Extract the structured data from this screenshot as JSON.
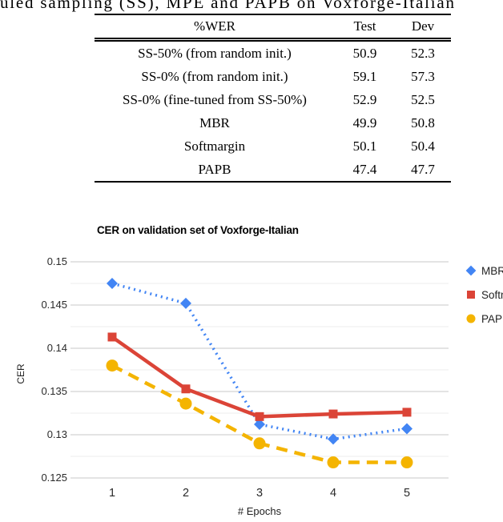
{
  "caption_fragment": "uled sampling (SS), MPE and PAPB on Voxforge-Italian",
  "table": {
    "headers": [
      "%WER",
      "Test",
      "Dev"
    ],
    "rows": [
      {
        "label": "SS-50% (from random init.)",
        "test": "50.9",
        "dev": "52.3"
      },
      {
        "label": "SS-0% (from random init.)",
        "test": "59.1",
        "dev": "57.3"
      },
      {
        "label": "SS-0% (fine-tuned from SS-50%)",
        "test": "52.9",
        "dev": "52.5"
      },
      {
        "label": "MBR",
        "test": "49.9",
        "dev": "50.8"
      },
      {
        "label": "Softmargin",
        "test": "50.1",
        "dev": "50.4"
      },
      {
        "label": "PAPB",
        "test": "47.4",
        "dev": "47.7"
      }
    ]
  },
  "chart_data": {
    "type": "line",
    "title": "CER on validation set of Voxforge-Italian",
    "xlabel": "# Epochs",
    "ylabel": "CER",
    "x": [
      1,
      2,
      3,
      4,
      5
    ],
    "xtick_labels": [
      "1",
      "2",
      "3",
      "4",
      "5"
    ],
    "ylim": [
      0.125,
      0.15
    ],
    "ytick_step": 0.005,
    "minor_grid_step": 0.0025,
    "ytick_labels": [
      "0.15",
      "0.145",
      "0.14",
      "0.135",
      "0.13",
      "0.125"
    ],
    "grid": true,
    "legend_position": "right",
    "colors": {
      "major_grid": "#c9c9c9",
      "minor_grid": "#ececec"
    },
    "series": [
      {
        "name": "MBR",
        "color": "#4285F4",
        "marker": "diamond",
        "line_style": "dotted",
        "values": [
          0.1475,
          0.1452,
          0.1312,
          0.1295,
          0.1307
        ]
      },
      {
        "name": "Softmargin",
        "color": "#DB4437",
        "marker": "square",
        "line_style": "solid",
        "values": [
          0.1413,
          0.1353,
          0.1321,
          0.1324,
          0.1326
        ]
      },
      {
        "name": "PAPB",
        "color": "#F4B400",
        "marker": "circle",
        "line_style": "dashed",
        "values": [
          0.138,
          0.1336,
          0.129,
          0.1268,
          0.1268
        ]
      }
    ]
  }
}
